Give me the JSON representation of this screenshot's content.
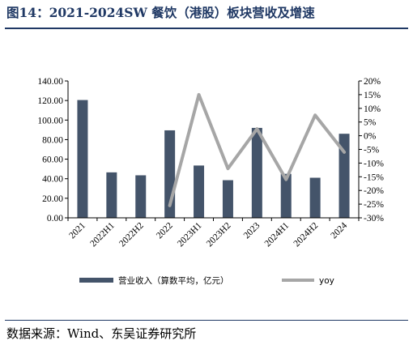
{
  "title": "图14：2021-2024SW 餐饮（港股）板块营收及增速",
  "source": "数据来源：Wind、东吴证券研究所",
  "chart_data": {
    "type": "bar",
    "categories": [
      "2021",
      "2022H1",
      "2022H2",
      "2022",
      "2023H1",
      "2023H2",
      "2023",
      "2024H1",
      "2024H2",
      "2024"
    ],
    "series": [
      {
        "name": "营业收入（算数平均，亿元）",
        "type": "bar",
        "axis": "left",
        "color": "#44546a",
        "values": [
          120.5,
          46.5,
          43.5,
          89.5,
          53.5,
          38.5,
          92.0,
          45.0,
          41.0,
          86.0
        ]
      },
      {
        "name": "yoy",
        "type": "line",
        "axis": "right",
        "color": "#a6a6a6",
        "values": [
          null,
          null,
          null,
          -25.5,
          15.0,
          -12.0,
          2.5,
          -16.0,
          7.5,
          -6.0
        ]
      }
    ],
    "y_left": {
      "ylim": [
        0,
        140
      ],
      "ticks": [
        "0.00",
        "20.00",
        "40.00",
        "60.00",
        "80.00",
        "100.00",
        "120.00",
        "140.00"
      ]
    },
    "y_right": {
      "ylim": [
        -30,
        20
      ],
      "ticks": [
        "-30%",
        "-25%",
        "-20%",
        "-15%",
        "-10%",
        "-5%",
        "0%",
        "5%",
        "10%",
        "15%",
        "20%"
      ]
    },
    "xlabel": "",
    "ylabel": "",
    "grid": false,
    "legend": "bottom"
  }
}
